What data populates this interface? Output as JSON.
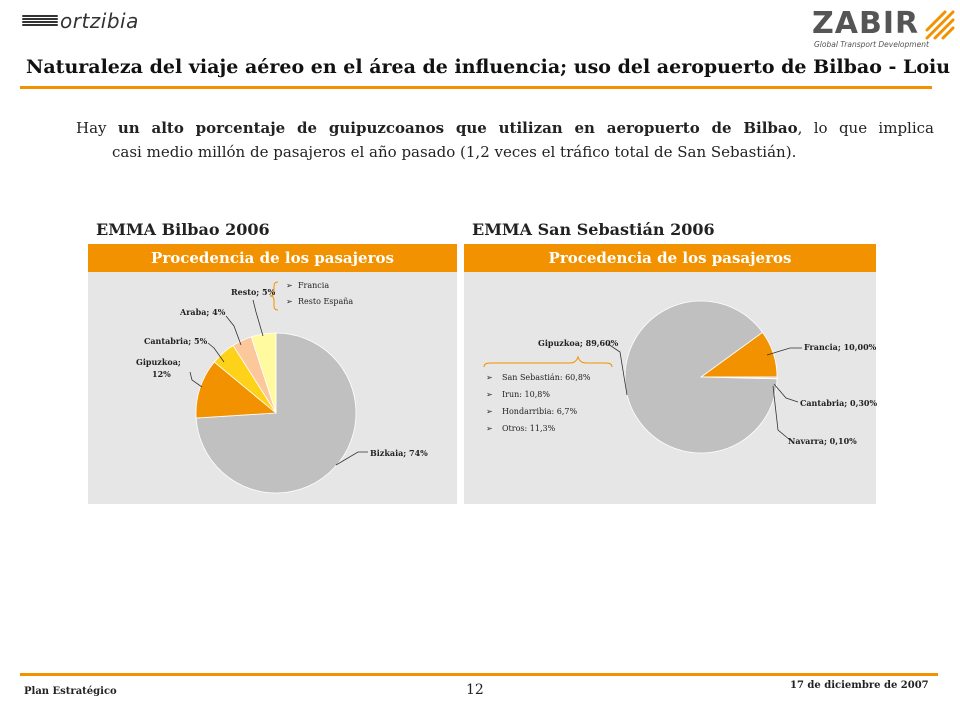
{
  "header": {
    "logo_left_text": "ortzibia",
    "logo_right_text": "ZABIR",
    "logo_right_tagline": "Global Transport Development"
  },
  "page_title": "Naturaleza del viaje aéreo en el área de influencia; uso del aeropuerto de Bilbao - Loiu",
  "intro": {
    "line1_start": "Hay ",
    "line1_bold": "un alto porcentaje de guipuzcoanos que utilizan en aeropuerto de Bilbao",
    "line1_end": ", lo que implica",
    "line2": "casi medio millón de pasajeros el año pasado (1,2 veces el tráfico total de San Sebastián)."
  },
  "colors": {
    "accent": "#f39200",
    "panel_bg": "#e6e6e6",
    "pie_grey": "#c0c0c0",
    "pie_orange": "#f39200",
    "pie_yellow": "#ffd21a",
    "pie_peach": "#fcc89b",
    "pie_lightyellow": "#fffaa0"
  },
  "chart_data": [
    {
      "type": "pie",
      "title": "EMMA Bilbao 2006",
      "subtitle": "Procedencia de los pasajeros",
      "slices": [
        {
          "label": "Bizkaia; 74%",
          "value": 74,
          "color": "#c0c0c0"
        },
        {
          "label": "Gipuzkoa; 12%",
          "value": 12,
          "color": "#f39200"
        },
        {
          "label": "Cantabria; 5%",
          "value": 5,
          "color": "#ffd21a"
        },
        {
          "label": "Araba; 4%",
          "value": 4,
          "color": "#fcc89b"
        },
        {
          "label": "Resto; 5%",
          "value": 5,
          "color": "#fffaa0"
        }
      ],
      "annotation_items": [
        "Francia",
        "Resto España"
      ]
    },
    {
      "type": "pie",
      "title": "EMMA San Sebastián 2006",
      "subtitle": "Procedencia de los pasajeros",
      "slices": [
        {
          "label": "Francia; 10,00%",
          "value": 10.0,
          "color": "#f39200"
        },
        {
          "label": "Cantabria; 0,30%",
          "value": 0.3,
          "color": "#c0c0c0"
        },
        {
          "label": "Navarra; 0,10%",
          "value": 0.1,
          "color": "#c0c0c0"
        },
        {
          "label": "Gipuzkoa; 89,60%",
          "value": 89.6,
          "color": "#c0c0c0"
        }
      ],
      "annotation_items": [
        "San Sebastián: 60,8%",
        "Irun: 10,8%",
        "Hondarribia: 6,7%",
        "Otros: 11,3%"
      ]
    }
  ],
  "footer": {
    "left": "Plan Estratégico",
    "page_number": "12",
    "date": "17 de diciembre de 2007"
  }
}
